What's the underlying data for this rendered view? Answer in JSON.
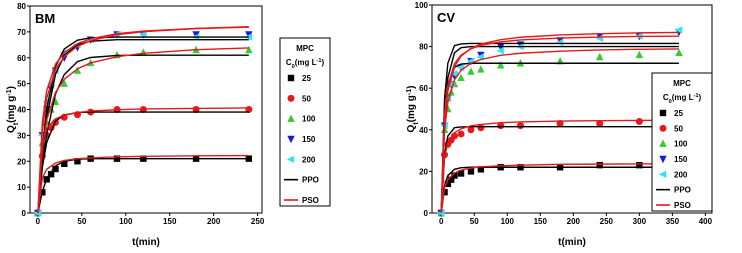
{
  "chart_data": [
    {
      "type": "scatter",
      "title": "BM",
      "x_label": "t(min)",
      "y_label": [
        "Q",
        "t",
        "(mg g",
        "-1",
        ")"
      ],
      "legend_title": "MPC",
      "legend_subtitle": [
        "C",
        "0",
        "(mg L",
        "-1",
        ")"
      ],
      "legend": "outside-right",
      "xlim": [
        -9,
        255
      ],
      "ylim": [
        0,
        80
      ],
      "xticks": [
        0,
        50,
        100,
        150,
        200,
        250
      ],
      "yticks": [
        0,
        10,
        20,
        30,
        40,
        50,
        60,
        70,
        80
      ],
      "x": [
        0,
        5,
        10,
        15,
        20,
        30,
        45,
        60,
        90,
        120,
        180,
        240
      ],
      "series": [
        {
          "name": "25",
          "color": "#000000",
          "marker": "square",
          "values": [
            0,
            8,
            13,
            15,
            17,
            19,
            20,
            21,
            21,
            21,
            21,
            21
          ]
        },
        {
          "name": "50",
          "color": "#e8191c",
          "marker": "circle",
          "values": [
            0,
            22,
            30,
            33,
            35,
            37,
            38,
            39,
            40,
            40,
            40,
            40
          ]
        },
        {
          "name": "100",
          "color": "#33cc33",
          "marker": "triangle-up",
          "values": [
            0,
            27,
            35,
            40,
            43,
            50,
            55,
            58,
            61,
            62,
            63,
            63
          ]
        },
        {
          "name": "150",
          "color": "#1a1adb",
          "marker": "triangle-down",
          "values": [
            0,
            30,
            40,
            48,
            55,
            60,
            64,
            67,
            69,
            69,
            69,
            69
          ]
        },
        {
          "name": "200",
          "color": "#33e5f2",
          "marker": "triangle-left",
          "values": [
            0,
            30,
            43,
            50,
            55,
            62,
            65,
            67,
            69,
            69,
            68,
            68
          ]
        }
      ],
      "fits": [
        {
          "name": "PPO",
          "color": "#000000",
          "x": [
            0,
            5,
            10,
            20,
            30,
            45,
            60,
            90,
            120,
            180,
            240
          ],
          "curves": [
            [
              0,
              8.3,
              13.3,
              18.2,
              20,
              20.8,
              21,
              21,
              21,
              21,
              21
            ],
            [
              0,
              17.6,
              27.3,
              35.5,
              37.9,
              38.8,
              39,
              39,
              39,
              39,
              39
            ],
            [
              0,
              18.2,
              30.5,
              46,
              53.5,
              58.5,
              60.1,
              60.9,
              61,
              61,
              61
            ],
            [
              0,
              22.1,
              36.9,
              53.6,
              61,
              65,
              66.4,
              67,
              67,
              67,
              67
            ],
            [
              0,
              24.6,
              40.3,
              56.6,
              63.4,
              66.8,
              67.7,
              68,
              68,
              68,
              68
            ]
          ]
        },
        {
          "name": "PSO",
          "color": "#e31a1c",
          "x": [
            0,
            5,
            10,
            20,
            30,
            45,
            60,
            90,
            120,
            180,
            240
          ],
          "curves": [
            [
              0,
              13.5,
              16.9,
              19.3,
              20.3,
              21,
              21.3,
              21.7,
              21.9,
              22.1,
              22.2
            ],
            [
              0,
              27.3,
              32.8,
              36.4,
              37.8,
              38.8,
              39.4,
              39.9,
              40.2,
              40.4,
              40.6
            ],
            [
              0,
              24.8,
              36,
              46.6,
              51.7,
              55.7,
              58,
              60.4,
              61.7,
              63.1,
              63.8
            ],
            [
              0,
              31.7,
              44.4,
              55.5,
              60.5,
              64.4,
              66.6,
              68.9,
              70.1,
              71.3,
              72
            ],
            [
              0,
              34.8,
              47.3,
              57.5,
              62,
              65.4,
              67.3,
              69.3,
              70.3,
              71.3,
              71.8
            ]
          ]
        }
      ]
    },
    {
      "type": "scatter",
      "title": "CV",
      "x_label": "t(min)",
      "y_label": [
        "Q",
        "t",
        "(mg g",
        "-1",
        ")"
      ],
      "legend_title": "MPC",
      "legend_subtitle": [
        "C",
        "0",
        "(mg L",
        "-1",
        ")"
      ],
      "legend": "inside-right",
      "xlim": [
        -14,
        410
      ],
      "ylim": [
        0,
        100
      ],
      "xticks": [
        0,
        50,
        100,
        150,
        200,
        250,
        300,
        350,
        400
      ],
      "yticks": [
        0,
        20,
        40,
        60,
        80,
        100
      ],
      "x": [
        0,
        5,
        10,
        15,
        20,
        30,
        45,
        60,
        90,
        120,
        180,
        240,
        300,
        360
      ],
      "series": [
        {
          "name": "25",
          "color": "#000000",
          "marker": "square",
          "values": [
            0,
            10,
            14,
            16,
            18,
            19,
            20,
            21,
            22,
            22,
            22,
            23,
            23,
            23
          ]
        },
        {
          "name": "50",
          "color": "#e8191c",
          "marker": "circle",
          "values": [
            0,
            28,
            33,
            35,
            37,
            38,
            40,
            41,
            42,
            42,
            43,
            43,
            44,
            44
          ]
        },
        {
          "name": "100",
          "color": "#33cc33",
          "marker": "triangle-up",
          "values": [
            0,
            40,
            50,
            58,
            62,
            65,
            68,
            69,
            71,
            72,
            73,
            75,
            76,
            77
          ]
        },
        {
          "name": "150",
          "color": "#1a1adb",
          "marker": "triangle-down",
          "values": [
            0,
            42,
            55,
            62,
            66,
            70,
            73,
            76,
            80,
            81,
            83,
            85,
            85,
            87
          ]
        },
        {
          "name": "200",
          "color": "#33e5f2",
          "marker": "triangle-left",
          "values": [
            0,
            42,
            55,
            62,
            67,
            70,
            73,
            75,
            78,
            80,
            82,
            84,
            85,
            88
          ]
        }
      ],
      "fits": [
        {
          "name": "PPO",
          "color": "#000000",
          "x": [
            0,
            5,
            10,
            20,
            30,
            45,
            60,
            90,
            120,
            180,
            240,
            300,
            360
          ],
          "curves": [
            [
              0,
              13,
              18,
              21,
              21.8,
              22,
              22,
              22,
              22,
              22,
              22,
              22,
              22
            ],
            [
              0,
              28,
              37,
              41,
              41.4,
              41.5,
              41.5,
              41.5,
              41.5,
              41.5,
              41.5,
              41.5,
              41.5
            ],
            [
              0,
              45,
              60,
              70,
              71.6,
              72,
              72,
              72,
              72,
              72,
              72,
              72,
              72
            ],
            [
              0,
              45,
              65,
              77,
              79.5,
              80,
              80,
              80,
              80,
              80,
              80,
              80,
              80
            ],
            [
              0,
              55,
              72,
              80.5,
              81.3,
              81.5,
              81.5,
              81.5,
              81.5,
              81.5,
              81.5,
              81.5,
              81.5
            ]
          ]
        },
        {
          "name": "PSO",
          "color": "#e31a1c",
          "x": [
            0,
            5,
            10,
            20,
            30,
            45,
            60,
            90,
            120,
            180,
            240,
            300,
            360
          ],
          "curves": [
            [
              0,
              12,
              16,
              19.2,
              20.6,
              21.6,
              22.2,
              22.7,
              23,
              23.4,
              23.5,
              23.6,
              23.7
            ],
            [
              0,
              27,
              33.8,
              38.6,
              40.5,
              41.9,
              42.6,
              43.4,
              43.8,
              44.2,
              44.4,
              44.5,
              44.6
            ],
            [
              0,
              40,
              53.3,
              64,
              68.6,
              72,
              73.8,
              75.8,
              76.8,
              77.8,
              78.4,
              78.7,
              78.9
            ],
            [
              0,
              44,
              58.7,
              70.4,
              75.4,
              79.2,
              81.2,
              83.3,
              84.5,
              85.6,
              86.2,
              86.6,
              86.8
            ],
            [
              0,
              47.8,
              61.4,
              71.7,
              75.9,
              78.9,
              80.6,
              82.3,
              83.2,
              84.1,
              84.6,
              84.9,
              85
            ]
          ]
        }
      ]
    }
  ]
}
